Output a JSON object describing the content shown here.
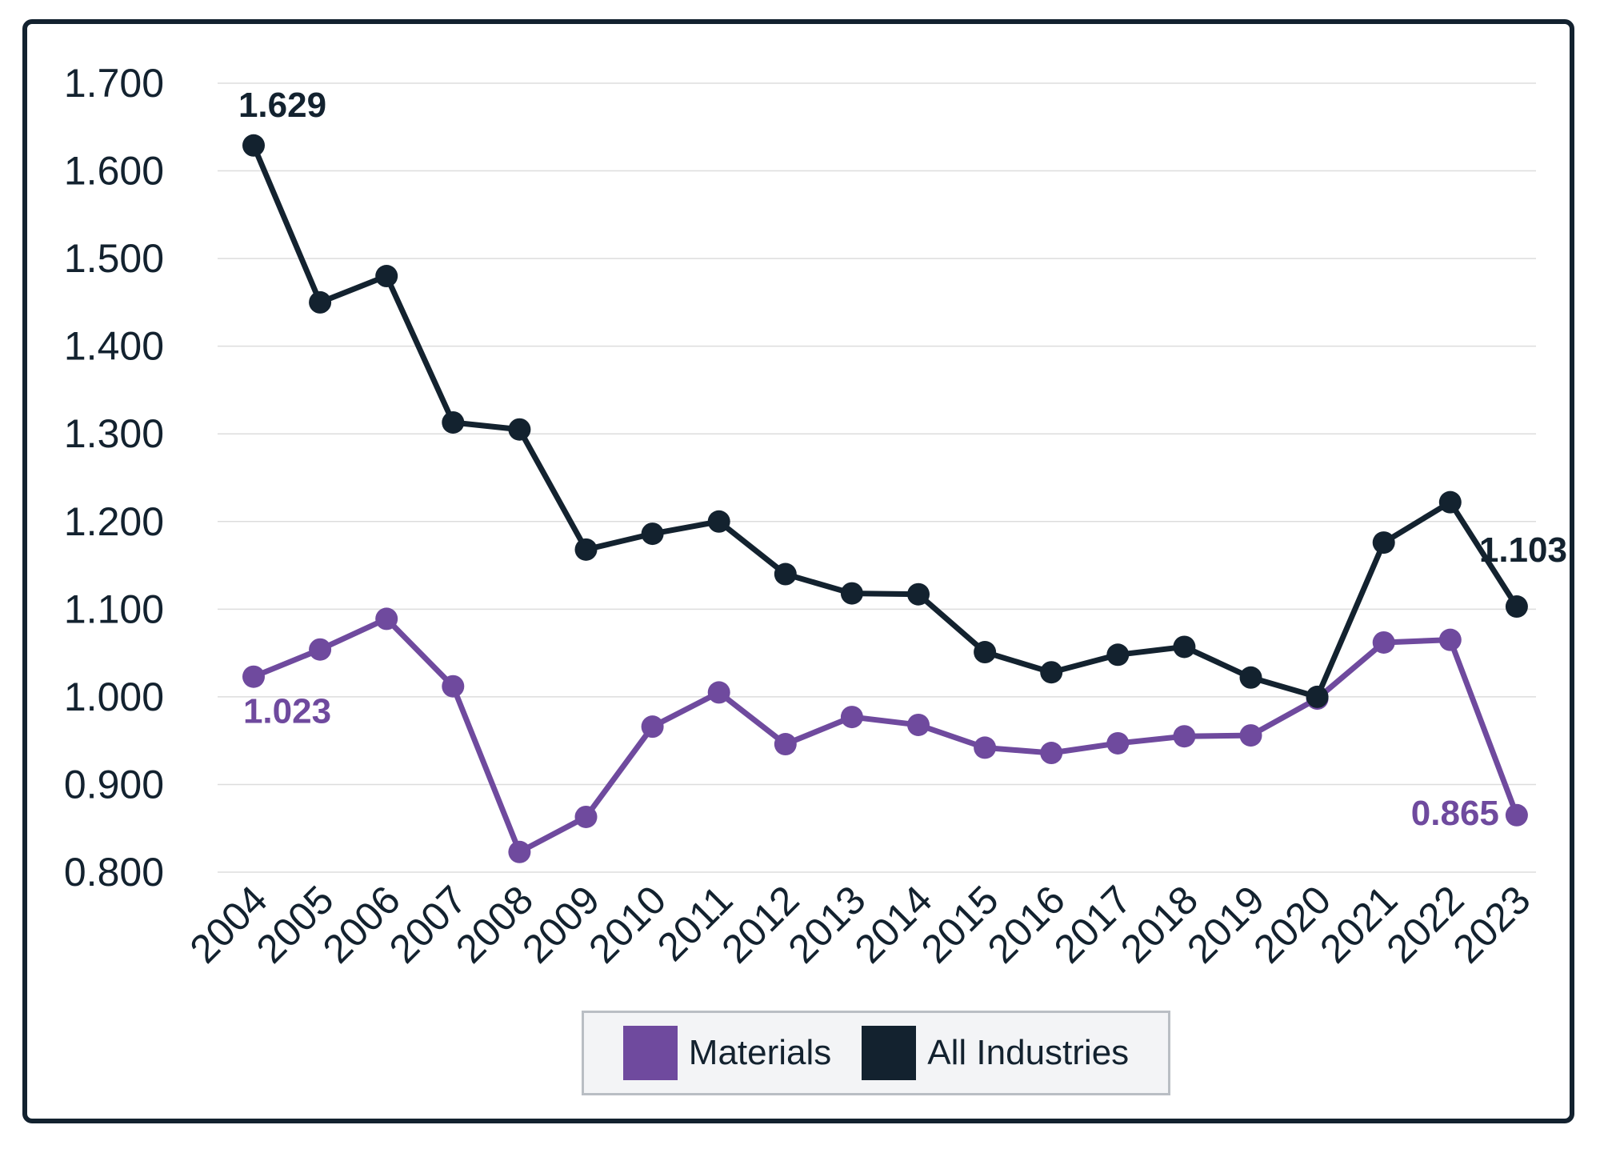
{
  "chart_data": {
    "type": "line",
    "categories": [
      "2004",
      "2005",
      "2006",
      "2007",
      "2008",
      "2009",
      "2010",
      "2011",
      "2012",
      "2013",
      "2014",
      "2015",
      "2016",
      "2017",
      "2018",
      "2019",
      "2020",
      "2021",
      "2022",
      "2023"
    ],
    "series": [
      {
        "name": "Materials",
        "color": "#6f4a9e",
        "values": [
          1.023,
          1.054,
          1.089,
          1.012,
          0.823,
          0.863,
          0.966,
          1.005,
          0.946,
          0.977,
          0.968,
          0.942,
          0.936,
          0.947,
          0.955,
          0.956,
          0.998,
          1.062,
          1.065,
          0.865
        ]
      },
      {
        "name": "All Industries",
        "color": "#13222f",
        "values": [
          1.629,
          1.45,
          1.48,
          1.313,
          1.305,
          1.168,
          1.186,
          1.2,
          1.14,
          1.118,
          1.117,
          1.051,
          1.028,
          1.048,
          1.057,
          1.022,
          1.0,
          1.176,
          1.222,
          1.103
        ]
      }
    ],
    "y_ticks": [
      "1.700",
      "1.600",
      "1.500",
      "1.400",
      "1.300",
      "1.200",
      "1.100",
      "1.000",
      "0.900",
      "0.800"
    ],
    "ylim": [
      0.8,
      1.7
    ],
    "grid": true,
    "legend": "bottom-center",
    "annotations": [
      {
        "series": 1,
        "index": 0,
        "text": "1.629"
      },
      {
        "series": 1,
        "index": 19,
        "text": "1.103"
      },
      {
        "series": 0,
        "index": 0,
        "text": "1.023"
      },
      {
        "series": 0,
        "index": 19,
        "text": "0.865"
      }
    ]
  },
  "legend": {
    "items": [
      {
        "label": "Materials",
        "color": "#6f4a9e"
      },
      {
        "label": "All Industries",
        "color": "#13222f"
      }
    ]
  }
}
